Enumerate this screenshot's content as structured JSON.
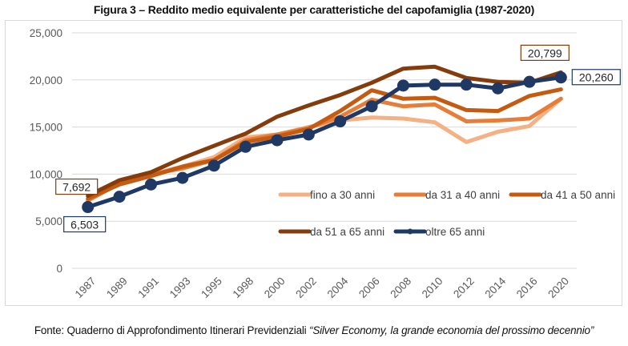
{
  "figure": {
    "title": "Figura 3 – Reddito medio equivalente per caratteristiche del capofamiglia (1987-2020)",
    "source_prefix": "Fonte: Quaderno di Approfondimento Itinerari Previdenziali ",
    "source_italic": "“Silver Economy, la grande economia del prossimo decennio”"
  },
  "chart_data": {
    "type": "line",
    "title": "Figura 3 – Reddito medio equivalente per caratteristiche del capofamiglia (1987-2020)",
    "xlabel": "",
    "ylabel": "",
    "ylim": [
      0,
      25000
    ],
    "yticks": [
      0,
      5000,
      10000,
      15000,
      20000,
      25000
    ],
    "ytick_labels": [
      "0",
      "5,000",
      "10,000",
      "15,000",
      "20,000",
      "25,000"
    ],
    "grid": true,
    "legend_position": "inside-right",
    "categories": [
      "1987",
      "1989",
      "1991",
      "1993",
      "1995",
      "1998",
      "2000",
      "2002",
      "2004",
      "2006",
      "2008",
      "2010",
      "2012",
      "2014",
      "2016",
      "2020"
    ],
    "series": [
      {
        "name": "fino a 30 anni",
        "color": "#F4B183",
        "markers": false,
        "values": [
          7300,
          9300,
          10000,
          10800,
          11800,
          13900,
          14200,
          15000,
          15700,
          16000,
          15900,
          15500,
          13400,
          14500,
          15100,
          18000
        ]
      },
      {
        "name": "da 31 a 40 anni",
        "color": "#E67E3A",
        "markers": false,
        "values": [
          7200,
          9000,
          10000,
          10600,
          11500,
          13600,
          14200,
          14900,
          16100,
          17900,
          17200,
          17400,
          15600,
          15700,
          15900,
          18000
        ]
      },
      {
        "name": "da 41 a 50 anni",
        "color": "#C55A11",
        "markers": false,
        "values": [
          7400,
          8900,
          9800,
          10800,
          11500,
          13400,
          14000,
          14800,
          16700,
          18900,
          18000,
          18100,
          16800,
          16700,
          18300,
          19000
        ]
      },
      {
        "name": "da 51 a 65 anni",
        "color": "#843C0C",
        "markers": false,
        "values": [
          7692,
          9350,
          10200,
          11700,
          13000,
          14300,
          16100,
          17300,
          18400,
          19700,
          21200,
          21400,
          20200,
          19800,
          19700,
          20799
        ]
      },
      {
        "name": "oltre 65 anni",
        "color": "#1F3864",
        "markers": true,
        "values": [
          6503,
          7600,
          8900,
          9600,
          10900,
          12900,
          13600,
          14200,
          15600,
          17200,
          19400,
          19500,
          19500,
          19100,
          19800,
          20260
        ]
      }
    ],
    "data_labels": [
      {
        "series": "da 51 a 65 anni",
        "category": "1987",
        "text": "7,692"
      },
      {
        "series": "oltre 65 anni",
        "category": "1987",
        "text": "6,503"
      },
      {
        "series": "da 51 a 65 anni",
        "category": "2020",
        "text": "20,799"
      },
      {
        "series": "oltre 65 anni",
        "category": "2020",
        "text": "20,260"
      }
    ]
  }
}
